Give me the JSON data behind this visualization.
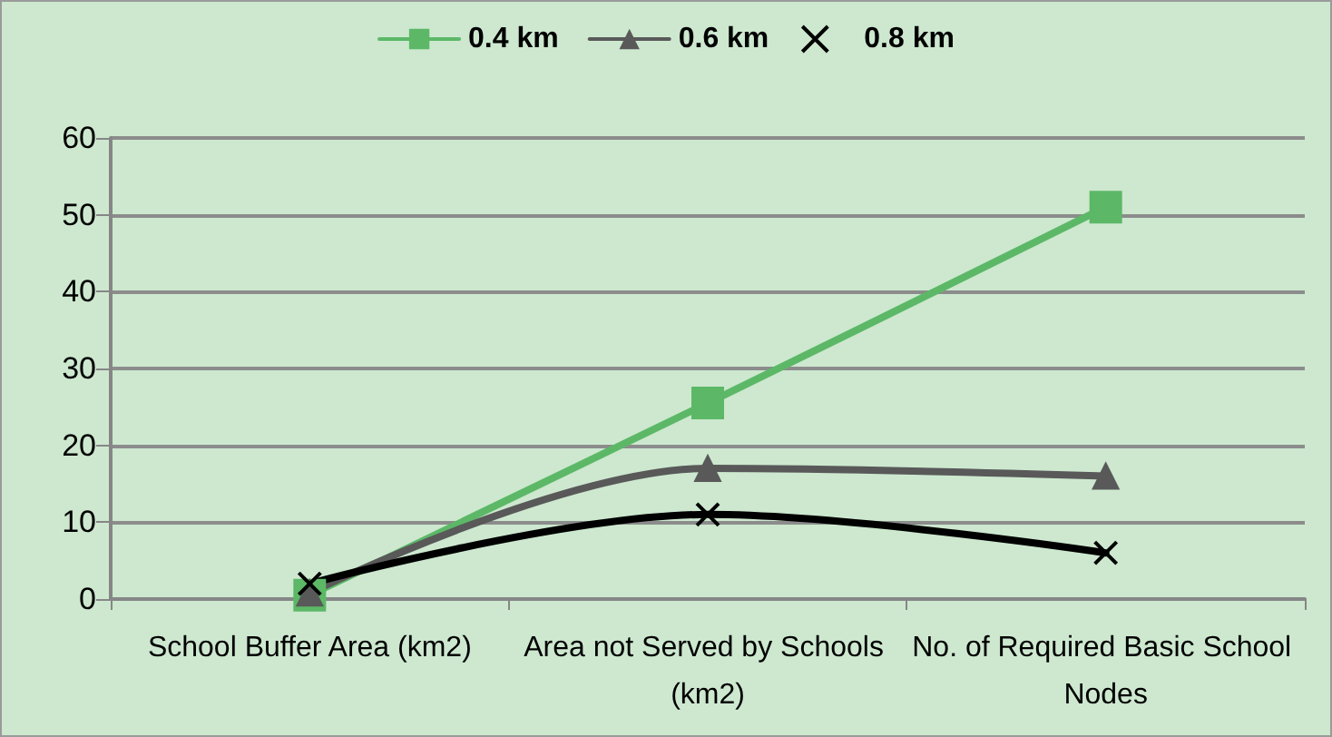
{
  "chart_data": {
    "type": "line",
    "categories": [
      "School Buffer Area (km2)",
      "Area not Served by Schools (km2)",
      "No. of Required Basic School Nodes"
    ],
    "series": [
      {
        "name": "0.4 km",
        "color": "#5cb867",
        "marker": "square",
        "values": [
          0.5,
          25.5,
          51
        ]
      },
      {
        "name": "0.6 km",
        "color": "#595959",
        "marker": "triangle",
        "values": [
          0.8,
          17,
          16
        ]
      },
      {
        "name": "0.8 km",
        "color": "#000000",
        "marker": "cross",
        "values": [
          2,
          11,
          6
        ]
      }
    ],
    "ylim": [
      0,
      60
    ],
    "yticks": [
      0,
      10,
      20,
      30,
      40,
      50,
      60
    ],
    "grid": "y",
    "legend": "top"
  }
}
